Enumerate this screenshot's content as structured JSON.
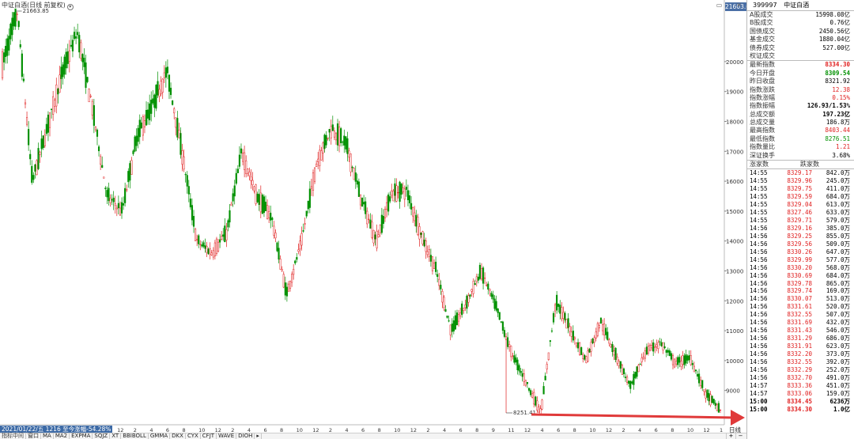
{
  "chart": {
    "title": "中证白酒(日线 前复权)",
    "current_price_label": "21603.6",
    "date_label": "2021/01/22/五 1216 至今涨幅-54.28%",
    "high_label": "21663.85",
    "low_label": "8251.41",
    "y_ticks": [
      "20000",
      "19000",
      "18000",
      "17000",
      "16000",
      "15000",
      "14000",
      "13000",
      "12000",
      "11000",
      "10000",
      "9000"
    ],
    "x_ticks": [
      "10",
      "12",
      "2",
      "4",
      "6",
      "8",
      "10",
      "12",
      "2",
      "4",
      "6",
      "8",
      "10",
      "12",
      "2",
      "4",
      "6",
      "8",
      "10",
      "12",
      "2",
      "4",
      "6",
      "8",
      "10",
      "12",
      "2",
      "4",
      "6",
      "8",
      "9",
      "11",
      "12",
      "4",
      "6",
      "8",
      "10",
      "12",
      "2",
      "4",
      "6",
      "8",
      "10",
      "12",
      "1"
    ],
    "indicators": [
      "指标中间",
      "窗口",
      "MA",
      "MA2",
      "EXPMA",
      "SQJZ",
      "XT",
      "BBIBOLL",
      "GMMA",
      "DKX",
      "CYX",
      "CFJT",
      "WAVE",
      "DIOH",
      "▸"
    ],
    "daily_tab": "日线",
    "zoom": [
      "+",
      "−"
    ],
    "colors": {
      "up": "#e02020",
      "down": "#009000",
      "accent": "#3c6aa6",
      "arrow": "#e03a3a"
    }
  },
  "chart_data": {
    "type": "candlestick",
    "y_range": [
      8251.41,
      21663.85
    ],
    "series": [
      {
        "t": 0,
        "v": 19900
      },
      {
        "t": 1,
        "v": 21663.85
      },
      {
        "t": 2,
        "v": 16000
      },
      {
        "t": 3,
        "v": 17800
      },
      {
        "t": 4,
        "v": 19600
      },
      {
        "t": 5,
        "v": 21000
      },
      {
        "t": 6,
        "v": 18500
      },
      {
        "t": 7,
        "v": 15500
      },
      {
        "t": 8,
        "v": 15000
      },
      {
        "t": 9,
        "v": 17500
      },
      {
        "t": 10,
        "v": 18500
      },
      {
        "t": 11,
        "v": 19700
      },
      {
        "t": 12,
        "v": 17000
      },
      {
        "t": 13,
        "v": 14000
      },
      {
        "t": 14,
        "v": 13600
      },
      {
        "t": 15,
        "v": 14300
      },
      {
        "t": 16,
        "v": 17000
      },
      {
        "t": 17,
        "v": 15500
      },
      {
        "t": 18,
        "v": 14800
      },
      {
        "t": 19,
        "v": 12200
      },
      {
        "t": 20,
        "v": 14000
      },
      {
        "t": 21,
        "v": 16600
      },
      {
        "t": 22,
        "v": 17800
      },
      {
        "t": 23,
        "v": 17200
      },
      {
        "t": 24,
        "v": 15400
      },
      {
        "t": 25,
        "v": 14000
      },
      {
        "t": 26,
        "v": 15600
      },
      {
        "t": 27,
        "v": 15700
      },
      {
        "t": 28,
        "v": 14200
      },
      {
        "t": 29,
        "v": 13000
      },
      {
        "t": 30,
        "v": 11000
      },
      {
        "t": 31,
        "v": 11900
      },
      {
        "t": 32,
        "v": 13000
      },
      {
        "t": 33,
        "v": 11800
      },
      {
        "t": 34,
        "v": 10300
      },
      {
        "t": 35,
        "v": 9300
      },
      {
        "t": 36,
        "v": 8251.41
      },
      {
        "t": 37,
        "v": 12000
      },
      {
        "t": 38,
        "v": 11000
      },
      {
        "t": 39,
        "v": 10000
      },
      {
        "t": 40,
        "v": 11300
      },
      {
        "t": 41,
        "v": 10200
      },
      {
        "t": 42,
        "v": 9100
      },
      {
        "t": 43,
        "v": 10300
      },
      {
        "t": 44,
        "v": 10600
      },
      {
        "t": 45,
        "v": 9900
      },
      {
        "t": 46,
        "v": 10100
      },
      {
        "t": 47,
        "v": 8900
      },
      {
        "t": 48,
        "v": 8334.3
      }
    ]
  },
  "panel": {
    "code": "399997",
    "name": "中证白酒",
    "rows": [
      {
        "k": "A股成交",
        "v": "15998.08亿",
        "c": "black"
      },
      {
        "k": "B股成交",
        "v": "0.76亿",
        "c": "black"
      },
      {
        "k": "国债成交",
        "v": "2450.56亿",
        "c": "black"
      },
      {
        "k": "基金成交",
        "v": "1880.04亿",
        "c": "black"
      },
      {
        "k": "债券成交",
        "v": "527.00亿",
        "c": "black"
      },
      {
        "k": "权证成交",
        "v": "",
        "c": "black"
      }
    ],
    "rows2": [
      {
        "k": "最新指数",
        "v": "8334.30",
        "c": "red"
      },
      {
        "k": "今日开盘",
        "v": "8309.54",
        "c": "green"
      },
      {
        "k": "昨日收盘",
        "v": "8321.92",
        "c": "black"
      },
      {
        "k": "指数涨跌",
        "v": "12.38",
        "c": "red"
      },
      {
        "k": "指数涨幅",
        "v": "0.15%",
        "c": "red"
      },
      {
        "k": "指数振幅",
        "v": "126.93/1.53%",
        "c": "black"
      },
      {
        "k": "总成交额",
        "v": "197.23亿",
        "c": "black"
      },
      {
        "k": "总成交量",
        "v": "186.8万",
        "c": "black"
      },
      {
        "k": "最高指数",
        "v": "8403.44",
        "c": "red"
      },
      {
        "k": "最低指数",
        "v": "8276.51",
        "c": "green"
      },
      {
        "k": "指数量比",
        "v": "1.21",
        "c": "red"
      },
      {
        "k": "深证换手",
        "v": "3.68%",
        "c": "black"
      }
    ],
    "rise_fall": {
      "rise": "涨家数",
      "fall": "跌家数"
    },
    "ticks": [
      {
        "t": "14:55",
        "p": "8329.17",
        "v": "842.0万"
      },
      {
        "t": "14:55",
        "p": "8329.96",
        "v": "245.0万"
      },
      {
        "t": "14:55",
        "p": "8329.75",
        "v": "411.0万"
      },
      {
        "t": "14:55",
        "p": "8329.59",
        "v": "684.0万"
      },
      {
        "t": "14:55",
        "p": "8329.04",
        "v": "613.0万"
      },
      {
        "t": "14:55",
        "p": "8327.46",
        "v": "633.0万"
      },
      {
        "t": "14:55",
        "p": "8329.71",
        "v": "579.0万"
      },
      {
        "t": "14:56",
        "p": "8329.16",
        "v": "385.0万"
      },
      {
        "t": "14:56",
        "p": "8329.25",
        "v": "855.0万"
      },
      {
        "t": "14:56",
        "p": "8329.56",
        "v": "509.0万"
      },
      {
        "t": "14:56",
        "p": "8330.26",
        "v": "647.0万"
      },
      {
        "t": "14:56",
        "p": "8329.99",
        "v": "577.0万"
      },
      {
        "t": "14:56",
        "p": "8330.20",
        "v": "568.0万"
      },
      {
        "t": "14:56",
        "p": "8330.69",
        "v": "684.0万"
      },
      {
        "t": "14:56",
        "p": "8329.78",
        "v": "865.0万"
      },
      {
        "t": "14:56",
        "p": "8329.74",
        "v": "169.0万"
      },
      {
        "t": "14:56",
        "p": "8330.07",
        "v": "513.0万"
      },
      {
        "t": "14:56",
        "p": "8331.61",
        "v": "520.0万"
      },
      {
        "t": "14:56",
        "p": "8332.55",
        "v": "507.0万"
      },
      {
        "t": "14:56",
        "p": "8331.69",
        "v": "432.0万"
      },
      {
        "t": "14:56",
        "p": "8331.43",
        "v": "546.0万"
      },
      {
        "t": "14:56",
        "p": "8331.29",
        "v": "686.0万"
      },
      {
        "t": "14:56",
        "p": "8331.91",
        "v": "623.0万"
      },
      {
        "t": "14:56",
        "p": "8332.20",
        "v": "373.0万"
      },
      {
        "t": "14:56",
        "p": "8332.55",
        "v": "392.0万"
      },
      {
        "t": "14:56",
        "p": "8332.29",
        "v": "252.0万"
      },
      {
        "t": "14:56",
        "p": "8332.70",
        "v": "491.0万"
      },
      {
        "t": "14:57",
        "p": "8333.36",
        "v": "451.0万"
      },
      {
        "t": "14:57",
        "p": "8333.06",
        "v": "159.0万"
      },
      {
        "t": "15:00",
        "p": "8334.45",
        "v": "6236万"
      },
      {
        "t": "15:00",
        "p": "8334.30",
        "v": "1.0亿"
      }
    ]
  }
}
